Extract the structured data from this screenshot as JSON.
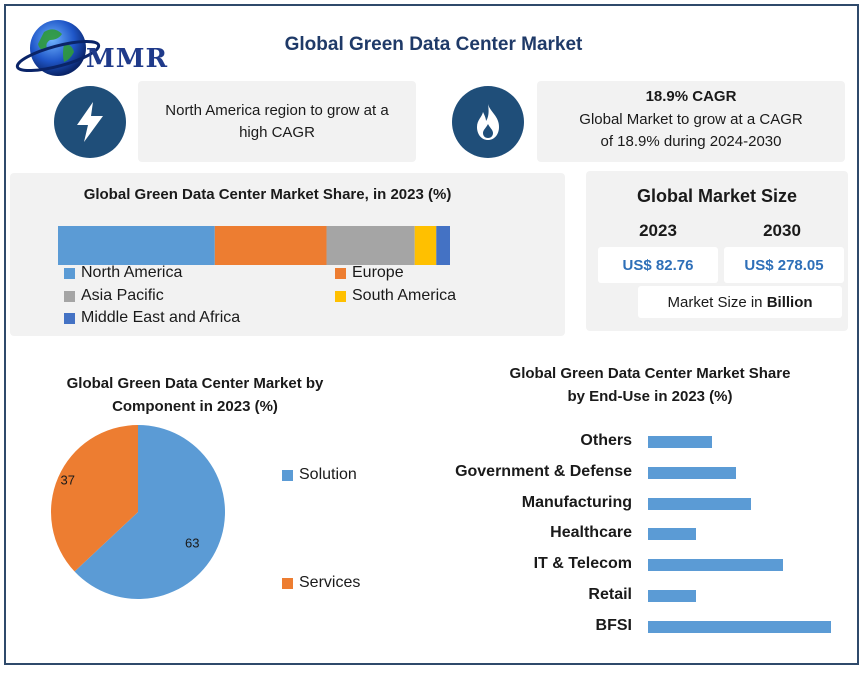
{
  "header": {
    "logo_text": "MMR",
    "title": "Global Green Data Center Market"
  },
  "highlights": [
    {
      "icon": "lightning-bolt-icon",
      "title": "",
      "text": "North America region to grow at a high CAGR"
    },
    {
      "icon": "flame-icon",
      "title": "18.9% CAGR",
      "text": "Global Market to grow at a CAGR of 18.9% during 2024-2030"
    }
  ],
  "market_size": {
    "title": "Global Market Size",
    "year_a": "2023",
    "year_b": "2030",
    "value_a": "US$ 82.76",
    "value_b": "US$ 278.05",
    "unit_prefix": "Market Size in ",
    "unit_bold": "Billion"
  },
  "colors": {
    "north_america": "#5b9bd5",
    "europe": "#ed7d31",
    "asia_pacific": "#a5a5a5",
    "south_america": "#ffc000",
    "mea": "#4472c4",
    "icon_circle": "#1f4e79"
  },
  "chart_data": [
    {
      "type": "bar",
      "title": "Global Green Data Center Market Share, in 2023 (%)",
      "stacked": true,
      "orientation": "horizontal",
      "series": [
        {
          "name": "North America",
          "values": [
            40
          ]
        },
        {
          "name": "Europe",
          "values": [
            28.5
          ]
        },
        {
          "name": "Asia Pacific",
          "values": [
            22.5
          ]
        },
        {
          "name": "South America",
          "values": [
            5.5
          ]
        },
        {
          "name": "Middle East and Africa",
          "values": [
            3.5
          ]
        }
      ],
      "legend": "bottom"
    },
    {
      "type": "pie",
      "title": "Global Green Data Center Market by Component in 2023 (%)",
      "categories": [
        "Solution",
        "Services"
      ],
      "values": [
        63,
        37
      ],
      "legend": "right"
    },
    {
      "type": "bar",
      "orientation": "horizontal",
      "title": "Global Green Data Center Market Share by End-Use in 2023 (%)",
      "categories": [
        "Others",
        "Government & Defense",
        "Manufacturing",
        "Healthcare",
        "IT & Telecom",
        "Retail",
        "BFSI"
      ],
      "values": [
        8,
        11,
        13,
        6,
        17,
        6,
        23
      ],
      "xlim": [
        0,
        23
      ]
    }
  ]
}
